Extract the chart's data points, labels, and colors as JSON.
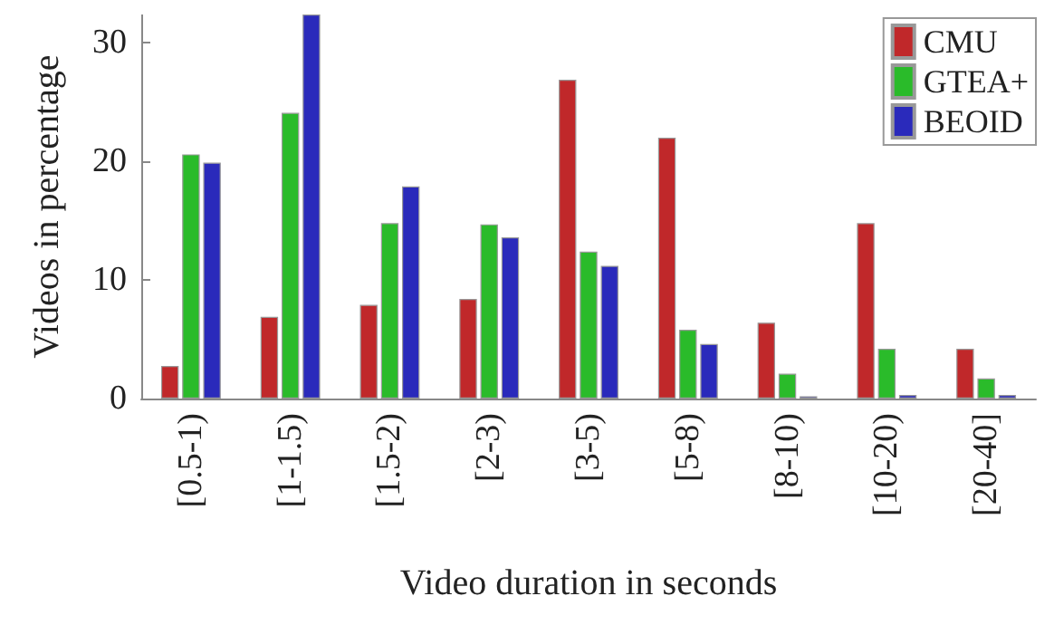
{
  "chart_data": {
    "type": "bar",
    "xlabel": "Video duration in seconds",
    "ylabel": "Videos in percentage",
    "categories": [
      "[0.5-1)",
      "[1-1.5)",
      "[1.5-2)",
      "[2-3)",
      "[3-5)",
      "[5-8)",
      "[8-10)",
      "[10-20)",
      "[20-40]"
    ],
    "series": [
      {
        "name": "CMU",
        "color": "#c0282a",
        "values": [
          2.75,
          6.9,
          7.9,
          8.4,
          26.9,
          22.0,
          6.4,
          14.8,
          4.2
        ]
      },
      {
        "name": "GTEA+",
        "color": "#2abb2a",
        "values": [
          20.6,
          24.1,
          14.8,
          14.7,
          12.4,
          5.8,
          2.1,
          4.2,
          1.7
        ]
      },
      {
        "name": "BEOID",
        "color": "#2a2abb",
        "values": [
          19.9,
          32.4,
          17.9,
          13.6,
          11.2,
          4.6,
          0.2,
          0.3,
          0.3
        ]
      }
    ],
    "ylim": [
      0,
      32.4
    ],
    "yticks": [
      0,
      10,
      20,
      30
    ],
    "grid": false,
    "legend": "top right"
  }
}
